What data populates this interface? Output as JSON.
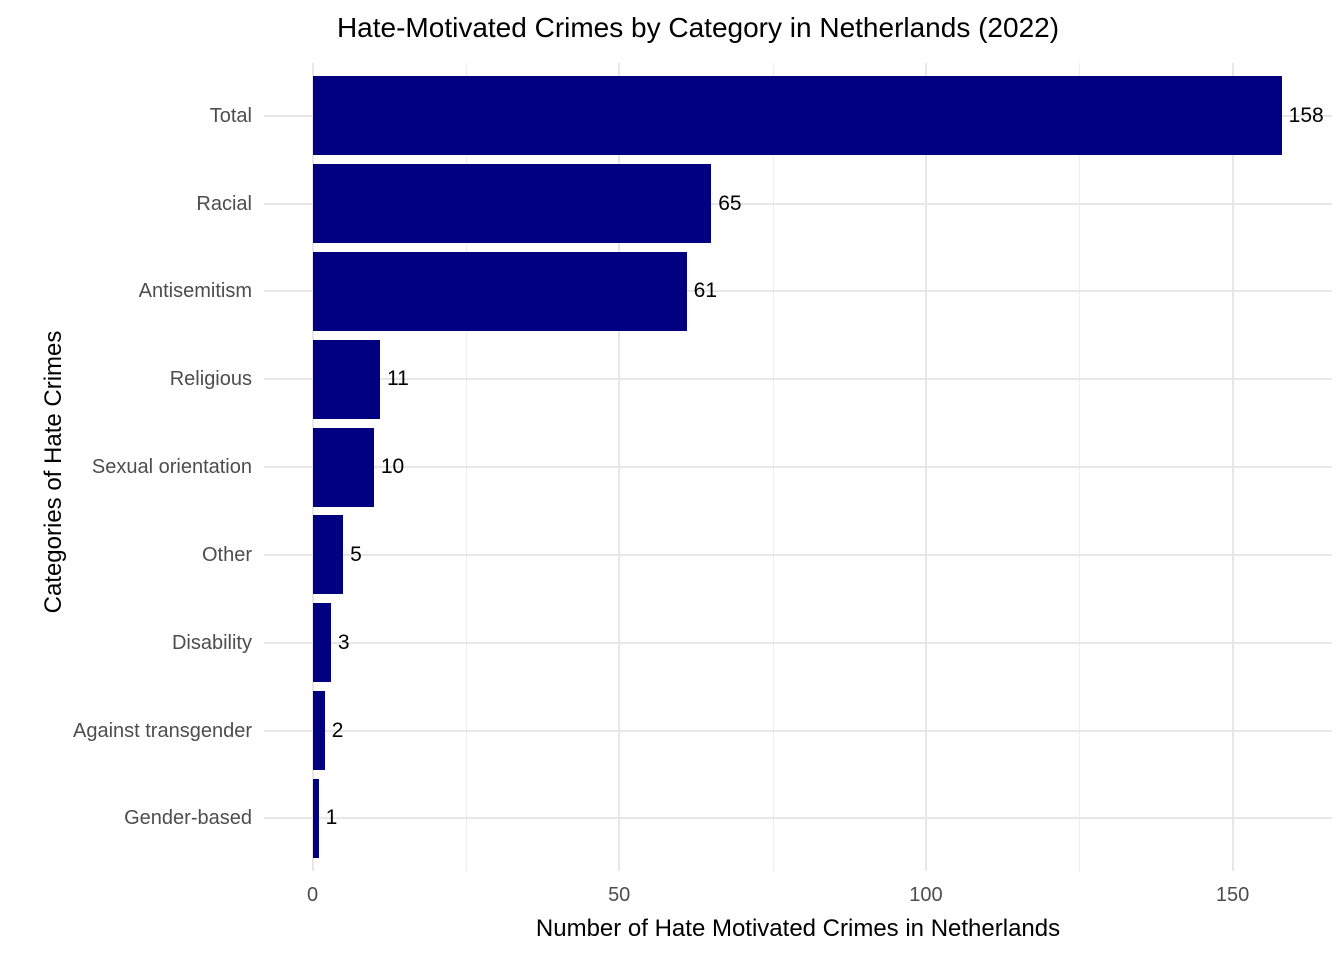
{
  "title": "Hate-Motivated Crimes by Category in Netherlands (2022)",
  "chart_data": {
    "type": "bar",
    "orientation": "horizontal",
    "title": "Hate-Motivated Crimes by Category in Netherlands (2022)",
    "xlabel": "Number of Hate Motivated Crimes in Netherlands",
    "ylabel": "Categories of Hate Crimes",
    "categories": [
      "Total",
      "Racial",
      "Antisemitism",
      "Religious",
      "Sexual orientation",
      "Other",
      "Disability",
      "Against transgender",
      "Gender-based"
    ],
    "values": [
      158,
      65,
      61,
      11,
      10,
      5,
      3,
      2,
      1
    ],
    "value_labels": [
      "158",
      "65",
      "61",
      "11",
      "10",
      "5",
      "3",
      "2",
      "1"
    ],
    "xlim": [
      0,
      165
    ],
    "x_major_ticks": [
      0,
      50,
      100,
      150
    ],
    "x_minor_ticks": [
      25,
      75,
      125
    ],
    "x_tick_labels": [
      "0",
      "50",
      "100",
      "150"
    ],
    "grid": true,
    "legend": false,
    "colors": {
      "bar_fill": "#000080",
      "axis_text": "#4D4D4D",
      "title_text": "#000000",
      "grid_major": "#E7E7E7",
      "grid_minor": "#EDEDED",
      "background": "#FFFFFF"
    }
  }
}
